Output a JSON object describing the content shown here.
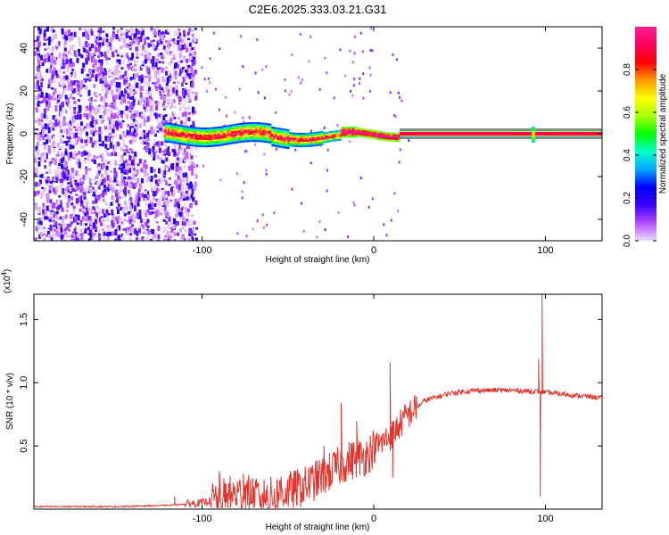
{
  "title": "C2E6.2025.333.03.21.G31",
  "chart_data": [
    {
      "type": "heatmap",
      "name": "spectrogram",
      "xlabel": "Height of straight line (km)",
      "ylabel": "Frequency (Hz)",
      "xlim": [
        -198,
        133
      ],
      "ylim": [
        -50,
        50
      ],
      "xticks": [
        -100,
        0,
        100
      ],
      "xtick_labels": [
        "-100",
        "0",
        "100"
      ],
      "yticks": [
        -40,
        -20,
        0,
        20,
        40
      ],
      "ytick_labels": [
        "-40",
        "-20",
        "0",
        "20",
        "40"
      ],
      "colorbar": {
        "label": "Normalized spectral amplitude",
        "range": [
          0,
          1
        ],
        "ticks": [
          0.0,
          0.2,
          0.4,
          0.6,
          0.8
        ],
        "tick_labels": [
          "0.0",
          "0.2",
          "0.4",
          "0.6",
          "0.8"
        ],
        "colors": [
          "#e9dcff",
          "#b64bff",
          "#3a00ff",
          "#0000ff",
          "#00a8ff",
          "#00ffc8",
          "#00ff00",
          "#aaff00",
          "#ffff00",
          "#ff9900",
          "#ff0000",
          "#ff0060",
          "#ff1f8f"
        ]
      },
      "noise_region": [
        -198,
        -108
      ],
      "signal_band": {
        "x_start": -122,
        "x_end": 133,
        "freq_center": 0
      }
    },
    {
      "type": "line",
      "name": "snr",
      "xlabel": "Height of straight line (km)",
      "ylabel": "SNR (10 * v/v)",
      "multiplier_label": "(x10",
      "multiplier_exponent": "4",
      "xlim": [
        -198,
        133
      ],
      "ylim": [
        0,
        1.7
      ],
      "xticks": [
        -100,
        0,
        100
      ],
      "xtick_labels": [
        "-100",
        "0",
        "100"
      ],
      "yticks": [
        0.5,
        1.0,
        1.5
      ],
      "ytick_labels": [
        "0.5",
        "1.0",
        "1.5"
      ],
      "color": "#e8342c",
      "envelope": [
        {
          "x": -198,
          "y": 0.02
        },
        {
          "x": -150,
          "y": 0.02
        },
        {
          "x": -120,
          "y": 0.03
        },
        {
          "x": -100,
          "y": 0.05
        },
        {
          "x": -80,
          "y": 0.12
        },
        {
          "x": -60,
          "y": 0.1
        },
        {
          "x": -40,
          "y": 0.18
        },
        {
          "x": -25,
          "y": 0.3
        },
        {
          "x": -15,
          "y": 0.38
        },
        {
          "x": -5,
          "y": 0.42
        },
        {
          "x": 0,
          "y": 0.48
        },
        {
          "x": 10,
          "y": 0.58
        },
        {
          "x": 20,
          "y": 0.75
        },
        {
          "x": 30,
          "y": 0.86
        },
        {
          "x": 45,
          "y": 0.92
        },
        {
          "x": 60,
          "y": 0.94
        },
        {
          "x": 80,
          "y": 0.94
        },
        {
          "x": 95,
          "y": 0.93
        },
        {
          "x": 110,
          "y": 0.91
        },
        {
          "x": 133,
          "y": 0.88
        }
      ],
      "spikes": [
        {
          "x": -116,
          "y": 0.1
        },
        {
          "x": -90,
          "y": 0.3
        },
        {
          "x": -76,
          "y": 0.28
        },
        {
          "x": -54,
          "y": 0.26
        },
        {
          "x": -38,
          "y": 0.32
        },
        {
          "x": -29,
          "y": 0.5
        },
        {
          "x": -19,
          "y": 0.84
        },
        {
          "x": -10,
          "y": 0.7
        },
        {
          "x": 9.5,
          "y": 1.16
        },
        {
          "x": 11,
          "y": 0.25
        },
        {
          "x": 96,
          "y": 1.19
        },
        {
          "x": 97,
          "y": 0.1
        },
        {
          "x": 98,
          "y": 1.7
        }
      ]
    }
  ]
}
